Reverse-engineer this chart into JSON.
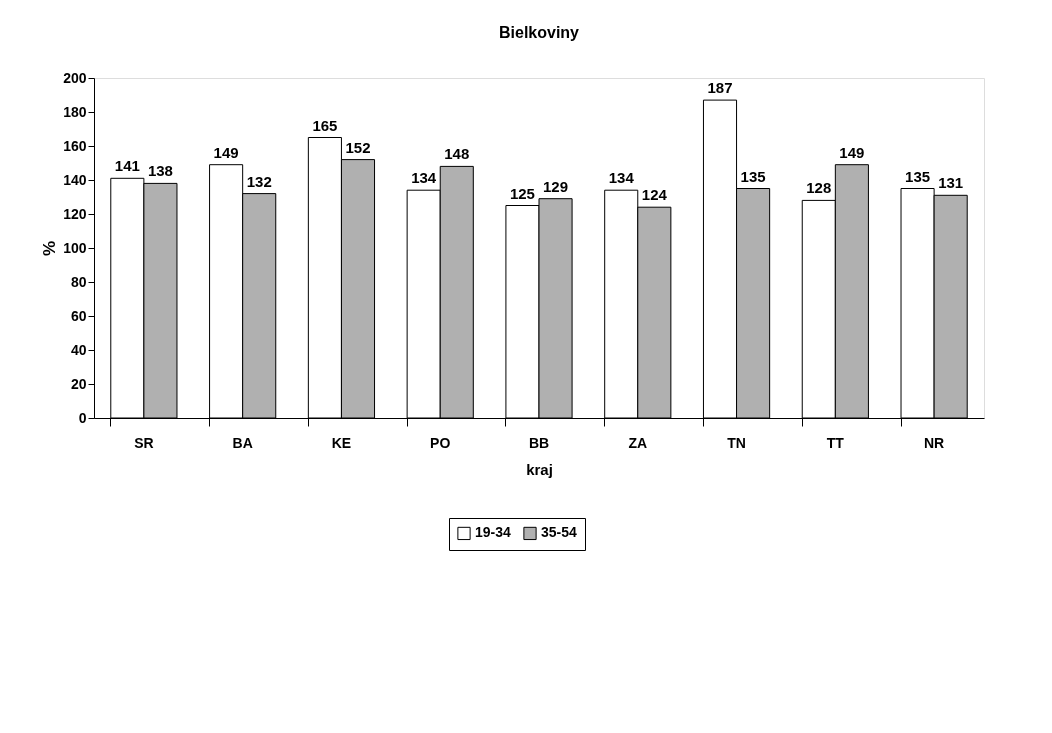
{
  "chart_data": {
    "type": "bar",
    "title": "Bielkoviny",
    "xlabel": "kraj",
    "ylabel": "%",
    "categories": [
      "SR",
      "BA",
      "KE",
      "PO",
      "BB",
      "ZA",
      "TN",
      "TT",
      "NR"
    ],
    "series": [
      {
        "name": "19-34",
        "color": "#ffffff",
        "values": [
          141,
          149,
          165,
          134,
          125,
          134,
          187,
          128,
          135
        ]
      },
      {
        "name": "35-54",
        "color": "#b0b0b0",
        "values": [
          138,
          132,
          152,
          148,
          129,
          124,
          135,
          149,
          131
        ]
      }
    ],
    "ylim": [
      0,
      200
    ],
    "yticks": [
      0,
      20,
      40,
      60,
      80,
      100,
      120,
      140,
      160,
      180,
      200
    ],
    "data_labels": true,
    "grid": false,
    "legend": "bottom"
  }
}
